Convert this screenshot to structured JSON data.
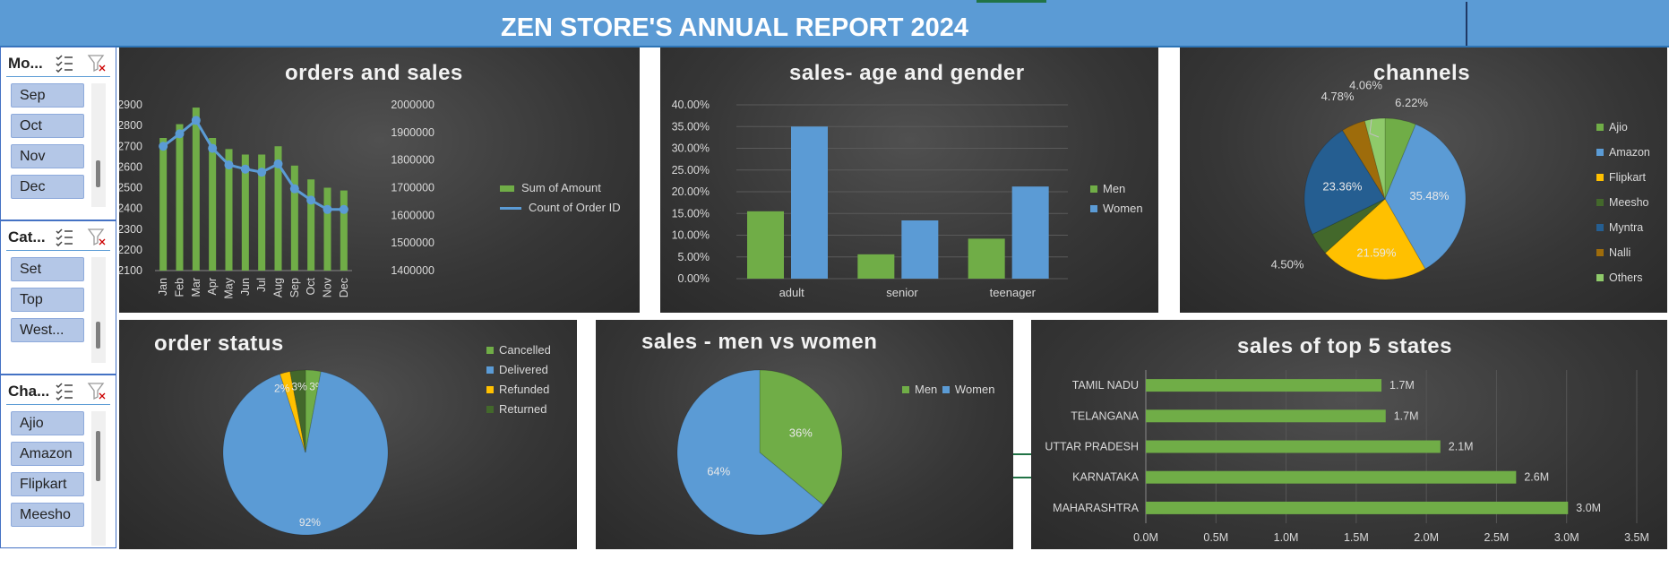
{
  "header": {
    "title": "ZEN STORE'S ANNUAL REPORT 2024"
  },
  "slicers": [
    {
      "title": "Mo...",
      "items": [
        "Sep",
        "Oct",
        "Nov",
        "Dec"
      ]
    },
    {
      "title": "Cat...",
      "items": [
        "Set",
        "Top",
        "West..."
      ]
    },
    {
      "title": "Cha...",
      "items": [
        "Ajio",
        "Amazon",
        "Flipkart",
        "Meesho"
      ]
    }
  ],
  "colors": {
    "green": "#70ad47",
    "blue": "#5b9bd5",
    "yellow": "#ffc000",
    "darkgreen": "#43682b",
    "navy": "#255e91",
    "orange": "#9e6c0b",
    "lightgreen": "#8fca6a",
    "text": "#d9d9d9"
  },
  "charts": {
    "orders_sales": {
      "title": "orders and sales",
      "type": "bar+line",
      "categories": [
        "Jan",
        "Feb",
        "Mar",
        "Apr",
        "May",
        "Jun",
        "Jul",
        "Aug",
        "Sep",
        "Oct",
        "Nov",
        "Dec"
      ],
      "left_axis": {
        "min": 2100,
        "max": 2900,
        "ticks": [
          "2900",
          "2800",
          "2700",
          "2600",
          "2500",
          "2400",
          "2300",
          "2200",
          "2100"
        ]
      },
      "right_axis": {
        "min": 1400000,
        "max": 2000000,
        "ticks": [
          "2000000",
          "1900000",
          "1800000",
          "1700000",
          "1600000",
          "1500000",
          "1400000"
        ]
      },
      "series": [
        {
          "name": "Sum of Amount",
          "axis": "right",
          "values": [
            1880000,
            1930000,
            1990000,
            1880000,
            1840000,
            1820000,
            1820000,
            1850000,
            1780000,
            1730000,
            1700000,
            1690000
          ]
        },
        {
          "name": "Count of Order ID",
          "axis": "left",
          "values": [
            2700,
            2760,
            2825,
            2690,
            2610,
            2590,
            2575,
            2615,
            2495,
            2440,
            2395,
            2395
          ]
        }
      ],
      "legend": [
        "Sum of Amount",
        "Count of Order ID"
      ]
    },
    "age_gender": {
      "title": "sales- age and gender",
      "type": "bar",
      "categories": [
        "adult",
        "senior",
        "teenager"
      ],
      "ylim": [
        0,
        0.4
      ],
      "ticks": [
        "40.00%",
        "35.00%",
        "30.00%",
        "25.00%",
        "20.00%",
        "15.00%",
        "10.00%",
        "5.00%",
        "0.00%"
      ],
      "series": [
        {
          "name": "Men",
          "values": [
            0.155,
            0.056,
            0.092
          ]
        },
        {
          "name": "Women",
          "values": [
            0.35,
            0.134,
            0.212
          ]
        }
      ]
    },
    "channels": {
      "title": "channels",
      "type": "pie",
      "legend": [
        "Ajio",
        "Amazon",
        "Flipkart",
        "Meesho",
        "Myntra",
        "Nalli",
        "Others"
      ],
      "slices": [
        {
          "name": "Ajio",
          "value": 6.22,
          "label": "6.22%"
        },
        {
          "name": "Amazon",
          "value": 35.48,
          "label": "35.48%"
        },
        {
          "name": "Flipkart",
          "value": 21.59,
          "label": "21.59%"
        },
        {
          "name": "Meesho",
          "value": 4.5,
          "label": "4.50%"
        },
        {
          "name": "Myntra",
          "value": 23.36,
          "label": "23.36%"
        },
        {
          "name": "Nalli",
          "value": 4.78,
          "label": "4.78%"
        },
        {
          "name": "Others",
          "value": 4.06,
          "label": "4.06%"
        }
      ]
    },
    "order_status": {
      "title": "order status",
      "type": "pie",
      "legend": [
        "Cancelled",
        "Delivered",
        "Refunded",
        "Returned"
      ],
      "slices": [
        {
          "name": "Cancelled",
          "value": 3,
          "label": "3%"
        },
        {
          "name": "Delivered",
          "value": 92,
          "label": "92%"
        },
        {
          "name": "Refunded",
          "value": 2,
          "label": "2%"
        },
        {
          "name": "Returned",
          "value": 3,
          "label": "3%"
        }
      ]
    },
    "men_women": {
      "title": "sales - men vs women",
      "type": "pie",
      "legend": [
        "Men",
        "Women"
      ],
      "slices": [
        {
          "name": "Men",
          "value": 36,
          "label": "36%"
        },
        {
          "name": "Women",
          "value": 64,
          "label": "64%"
        }
      ]
    },
    "top_states": {
      "title": "sales of top 5 states",
      "type": "bar-horizontal",
      "categories": [
        "TAMIL NADU",
        "TELANGANA",
        "UTTAR PRADESH",
        "KARNATAKA",
        "MAHARASHTRA"
      ],
      "values": [
        1.68,
        1.71,
        2.1,
        2.64,
        3.01
      ],
      "data_labels": [
        "1.7M",
        "1.7M",
        "2.1M",
        "2.6M",
        "3.0M"
      ],
      "xlim": [
        0,
        3.5
      ],
      "ticks": [
        "0.0M",
        "0.5M",
        "1.0M",
        "1.5M",
        "2.0M",
        "2.5M",
        "3.0M",
        "3.5M"
      ]
    }
  }
}
